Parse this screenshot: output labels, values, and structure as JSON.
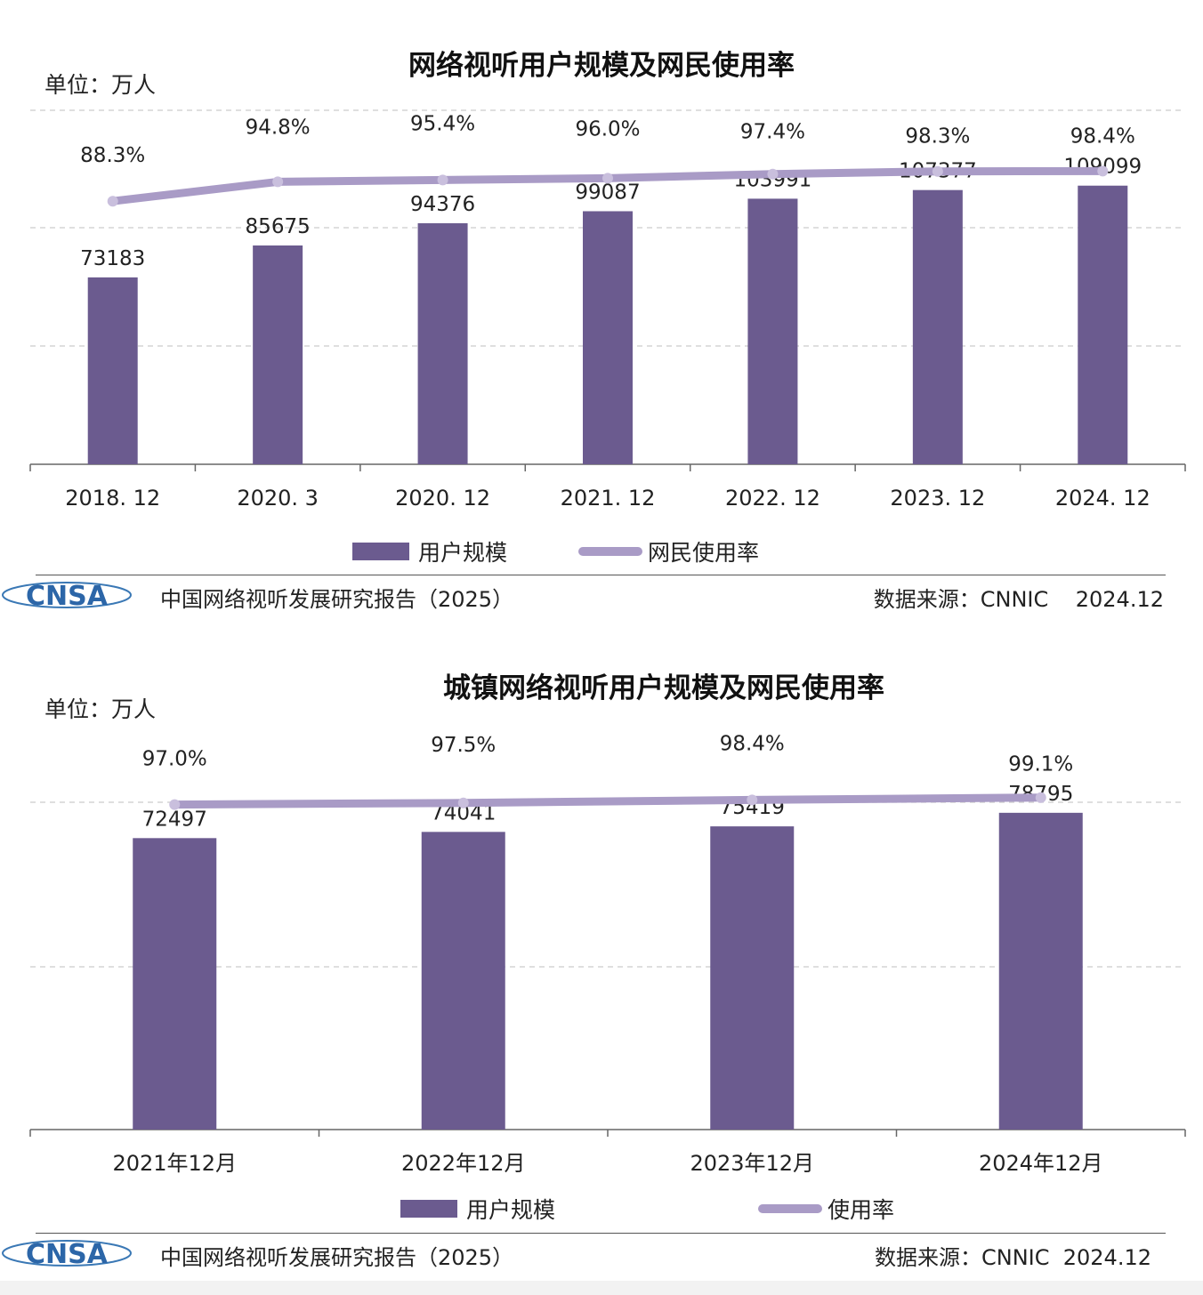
{
  "colors": {
    "bar": "#6b5b8f",
    "line": "#a99bc6",
    "grid": "#cccccc",
    "text": "#222222"
  },
  "footer": {
    "source_report": "中国网络视听发展研究报告（2025）",
    "logo_text": "CNSA"
  },
  "chart_data": [
    {
      "type": "bar",
      "title": "网络视听用户规模及网民使用率",
      "unit_label": "单位：万人",
      "categories": [
        "2018. 12",
        "2020. 3",
        "2020. 12",
        "2021. 12",
        "2022. 12",
        "2023. 12",
        "2024. 12"
      ],
      "series": [
        {
          "name": "用户规模",
          "type": "bar",
          "values": [
            73183,
            85675,
            94376,
            99087,
            103991,
            107377,
            109099
          ]
        },
        {
          "name": "网民使用率",
          "type": "line",
          "values": [
            88.3,
            94.8,
            95.4,
            96.0,
            97.4,
            98.3,
            98.4
          ],
          "labels": [
            "88.3%",
            "94.8%",
            "95.4%",
            "96.0%",
            "97.4%",
            "98.3%",
            "98.4%"
          ]
        }
      ],
      "ylim": [
        0,
        140000
      ],
      "rate_lim": [
        0,
        120
      ],
      "grid": true,
      "legend_position": "bottom",
      "source": "数据来源：CNNIC    2024.12"
    },
    {
      "type": "bar",
      "title": "城镇网络视听用户规模及网民使用率",
      "unit_label": "单位：万人",
      "categories": [
        "2021年12月",
        "2022年12月",
        "2023年12月",
        "2024年12月"
      ],
      "series": [
        {
          "name": "用户规模",
          "type": "bar",
          "values": [
            72497,
            74041,
            75419,
            78795
          ]
        },
        {
          "name": "使用率",
          "type": "line",
          "values": [
            97.0,
            97.5,
            98.4,
            99.1
          ],
          "labels": [
            "97.0%",
            "97.5%",
            "98.4%",
            "99.1%"
          ]
        }
      ],
      "ylim": [
        0,
        100000
      ],
      "rate_lim": [
        0,
        120
      ],
      "grid": true,
      "legend_position": "bottom",
      "source": "数据来源：CNNIC  2024.12"
    }
  ]
}
